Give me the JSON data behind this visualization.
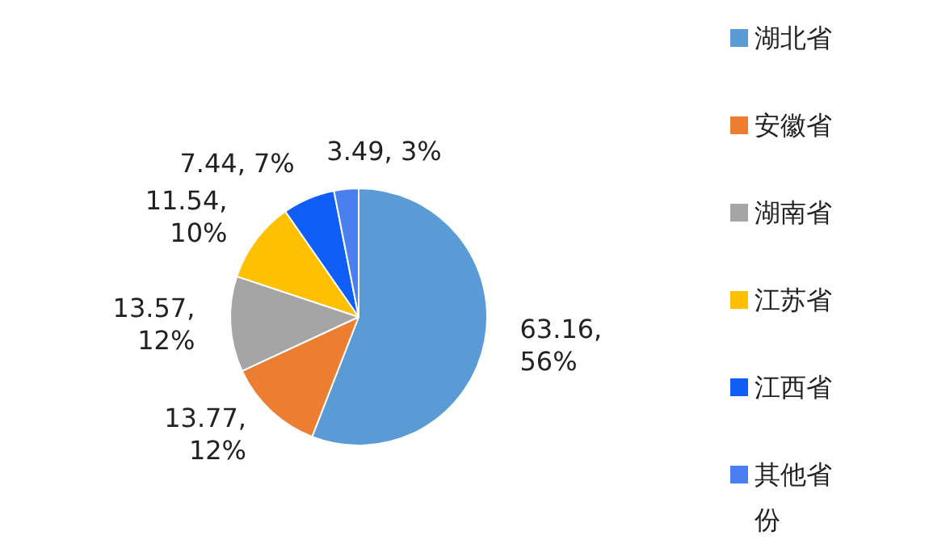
{
  "chart_data": {
    "type": "pie",
    "categories": [
      "湖北省",
      "安徽省",
      "湖南省",
      "江苏省",
      "江西省",
      "其他省份"
    ],
    "values": [
      63.16,
      13.77,
      13.57,
      11.54,
      7.44,
      3.49
    ],
    "colors": [
      "#5b9bd5",
      "#ed7d31",
      "#a5a5a5",
      "#ffc000",
      "#0f5ef7",
      "#4a7ff0"
    ],
    "value_labels": [
      "63.16, 56%",
      "13.77, 12%",
      "13.57, 12%",
      "11.54, 10%",
      "7.44, 7%",
      "3.49, 3%"
    ],
    "legend": "right"
  }
}
